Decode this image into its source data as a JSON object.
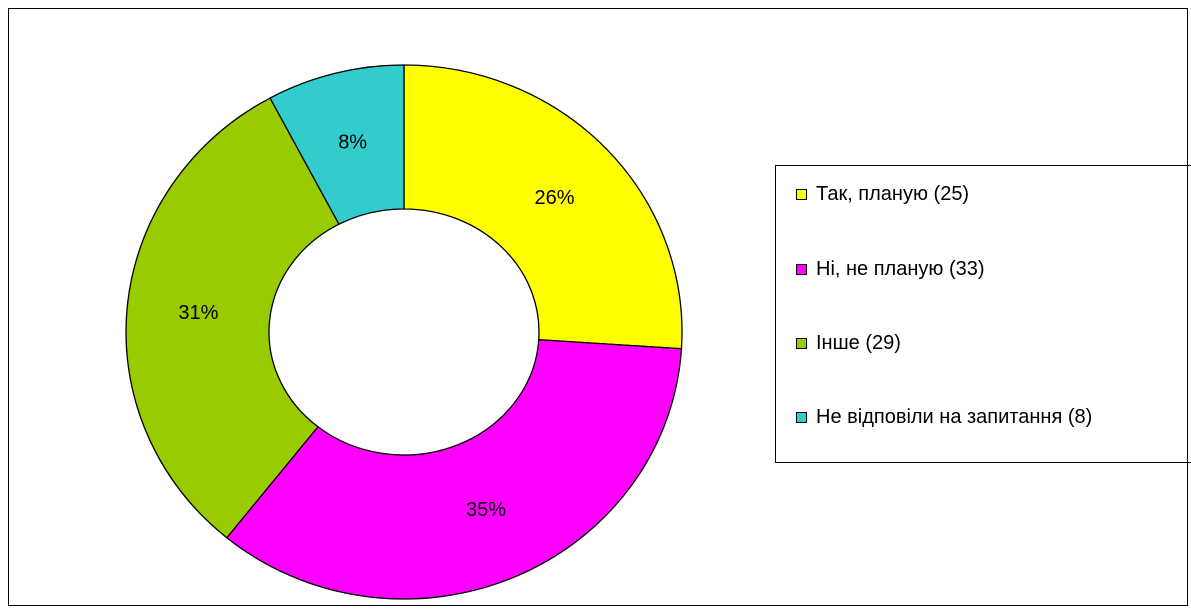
{
  "chart_data": {
    "type": "donut",
    "categories": [
      "Так, планую (25)",
      "Ні, не планую (33)",
      "Інше (29)",
      "Не відповіли на запитання (8)"
    ],
    "values": [
      26,
      35,
      31,
      8
    ],
    "value_labels": [
      "26%",
      "35%",
      "31%",
      "8%"
    ],
    "colors": [
      "#ffff00",
      "#ff00ff",
      "#99cc00",
      "#33cccc"
    ]
  }
}
